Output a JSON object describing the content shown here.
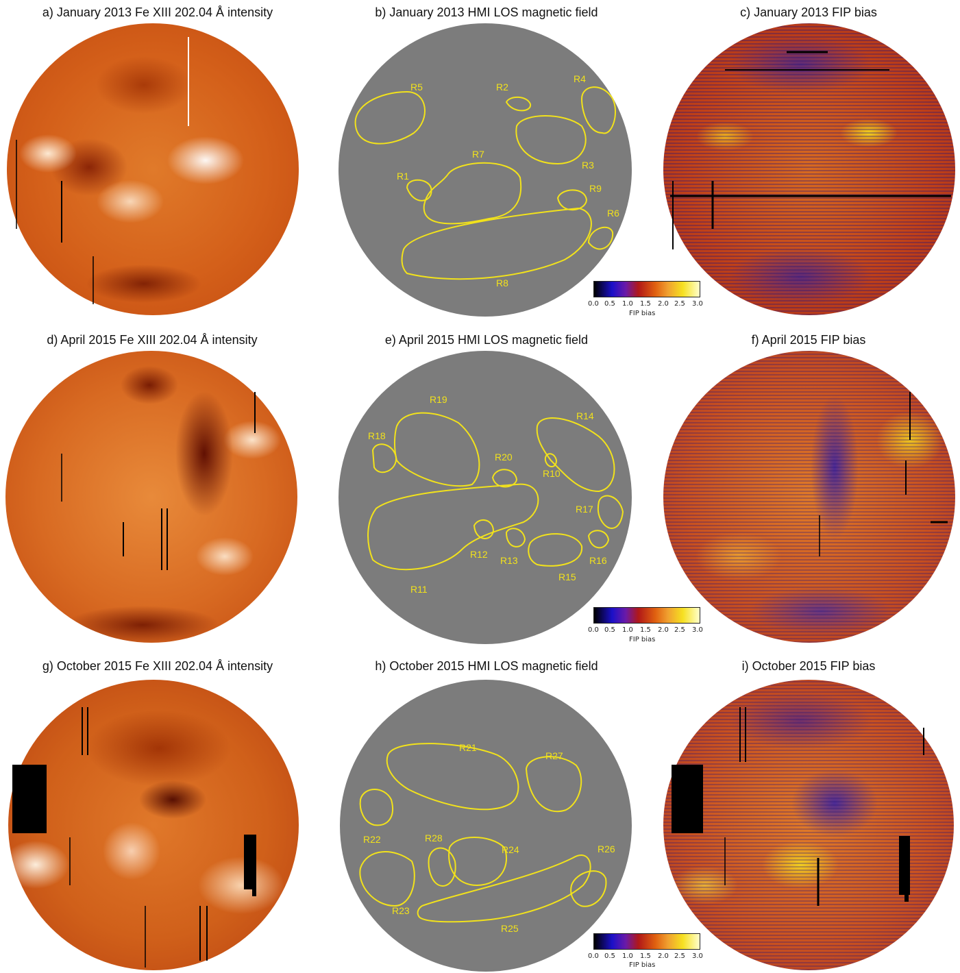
{
  "rows": [
    {
      "intensity_title": "a) January 2013 Fe XIII 202.04 Å intensity",
      "magnetic_title": "b) January 2013 HMI LOS magnetic field",
      "fip_title": "c) January 2013 FIP bias",
      "regions": [
        "R1",
        "R2",
        "R3",
        "R4",
        "R5",
        "R6",
        "R7",
        "R8",
        "R9"
      ]
    },
    {
      "intensity_title": "d) April 2015 Fe XIII 202.04 Å intensity",
      "magnetic_title": "e) April 2015 HMI LOS magnetic field",
      "fip_title": "f) April 2015 FIP bias",
      "regions": [
        "R10",
        "R11",
        "R12",
        "R13",
        "R14",
        "R15",
        "R16",
        "R17",
        "R18",
        "R19",
        "R20"
      ]
    },
    {
      "intensity_title": "g) October 2015 Fe XIII 202.04 Å intensity",
      "magnetic_title": "h) October 2015 HMI LOS magnetic field",
      "fip_title": "i) October 2015 FIP bias",
      "regions": [
        "R21",
        "R22",
        "R23",
        "R24",
        "R25",
        "R26",
        "R27",
        "R28"
      ]
    }
  ],
  "colorbar": {
    "ticks": [
      "0.0",
      "0.5",
      "1.0",
      "1.5",
      "2.0",
      "2.5",
      "3.0"
    ],
    "label": "FIP bias",
    "colors": [
      "#000000",
      "#1b10c8",
      "#6a1aa8",
      "#b01818",
      "#e06010",
      "#f0a030",
      "#f6e020",
      "#ffffcc"
    ]
  },
  "colors": {
    "contour": "#f2e21b",
    "magnetogram_gray": "#7c7c7c"
  }
}
